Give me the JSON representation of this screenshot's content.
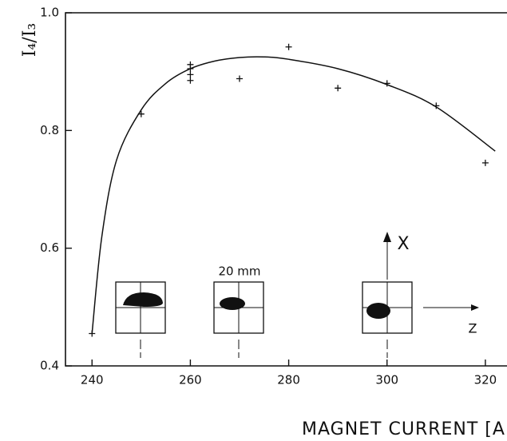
{
  "chart_data": {
    "type": "scatter",
    "y_label": "I₄/I₃",
    "x_label": "MAGNET CURRENT [A]",
    "annotations": [
      "20 mm",
      "X",
      "Z"
    ],
    "x": [
      240,
      250,
      260,
      260,
      260,
      260,
      270,
      280,
      290,
      300,
      310,
      320
    ],
    "values": [
      0.455,
      0.828,
      0.885,
      0.895,
      0.905,
      0.912,
      0.888,
      0.942,
      0.872,
      0.88,
      0.842,
      0.745
    ],
    "curve": {
      "x": [
        240,
        242,
        245,
        250,
        255,
        260,
        265,
        270,
        275,
        280,
        290,
        300,
        310,
        322
      ],
      "values": [
        0.455,
        0.62,
        0.75,
        0.835,
        0.88,
        0.905,
        0.918,
        0.924,
        0.925,
        0.921,
        0.905,
        0.878,
        0.84,
        0.765
      ]
    },
    "xlim": [
      234.6,
      324.4
    ],
    "ylim": [
      0.4,
      1.0
    ],
    "xticks": [
      240,
      260,
      280,
      300,
      320
    ],
    "yticks": [
      0.4,
      0.6,
      0.8,
      {
        "value": 1,
        "label": "1.0"
      }
    ]
  }
}
